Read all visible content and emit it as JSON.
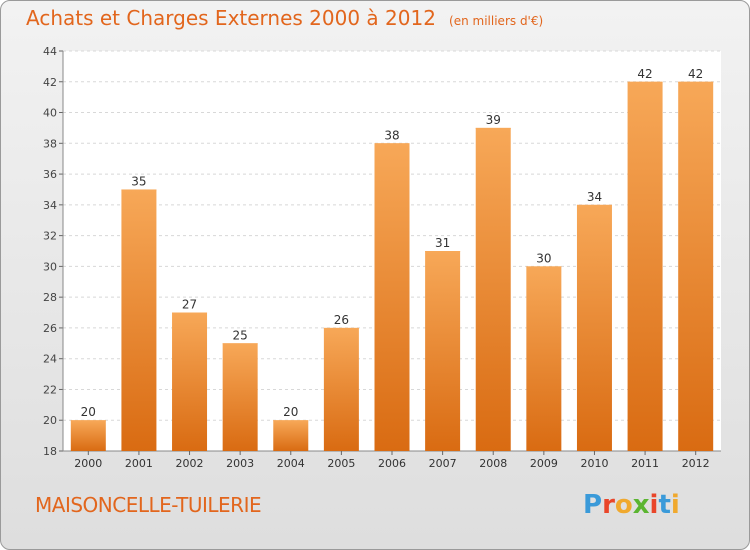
{
  "header": {
    "title": "Achats et Charges Externes 2000 à 2012",
    "unit": "(en milliers d'€)"
  },
  "footer": {
    "commune": "MAISONCELLE-TUILERIE",
    "logo_text": "Proxiti",
    "logo_colors": [
      "#3a9ad9",
      "#e9462a",
      "#f0a92e",
      "#5bb531",
      "#e9462a",
      "#3a9ad9",
      "#f0a92e"
    ]
  },
  "chart_data": {
    "type": "bar",
    "title": "Achats et Charges Externes 2000 à 2012",
    "subtitle": "(en milliers d'€)",
    "categories": [
      "2000",
      "2001",
      "2002",
      "2003",
      "2004",
      "2005",
      "2006",
      "2007",
      "2008",
      "2009",
      "2010",
      "2011",
      "2012"
    ],
    "values": [
      20,
      35,
      27,
      25,
      20,
      26,
      38,
      31,
      39,
      30,
      34,
      42,
      42
    ],
    "ylim": [
      18,
      44
    ],
    "yticks": [
      18,
      20,
      22,
      24,
      26,
      28,
      30,
      32,
      34,
      36,
      38,
      40,
      42,
      44
    ],
    "grid": true,
    "bar_color": "#f08a2a",
    "bar_color_light": "#f7a858",
    "bar_color_dark": "#d96b12"
  }
}
